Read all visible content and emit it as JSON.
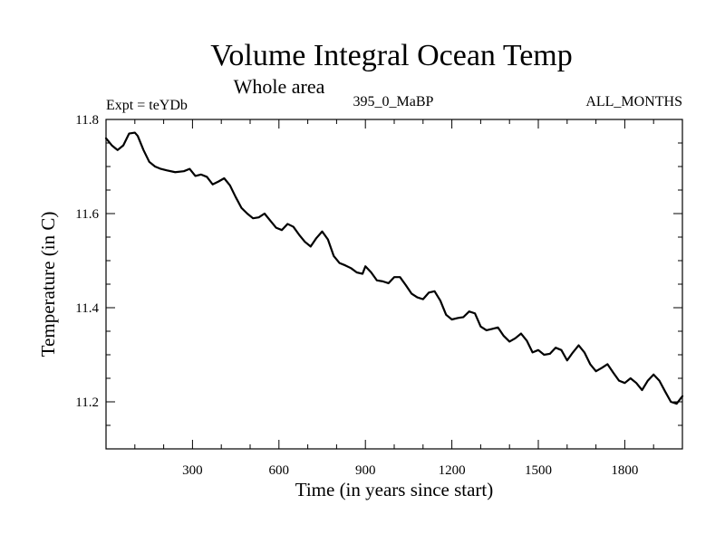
{
  "chart_data": {
    "type": "line",
    "title": "Volume Integral Ocean Temp",
    "subtitle": "Whole area",
    "left_label": "Expt = teYDb",
    "center_label": "395_0_MaBP",
    "right_label": "ALL_MONTHS",
    "xlabel": "Time (in years since start)",
    "ylabel": "Temperature (in C)",
    "xlim": [
      0,
      2000
    ],
    "ylim": [
      11.1,
      11.8
    ],
    "x_ticks": [
      300,
      600,
      900,
      1200,
      1500,
      1800
    ],
    "x_minor_step": 100,
    "y_ticks": [
      11.2,
      11.4,
      11.6,
      11.8
    ],
    "y_tick_labels": [
      "11.2",
      "11.4",
      "11.6",
      "11.8"
    ],
    "y_minor_step": 0.05,
    "line_color": "#000000",
    "series": [
      {
        "name": "Volume Integral Ocean Temp",
        "x": [
          0,
          20,
          40,
          60,
          80,
          100,
          110,
          130,
          150,
          170,
          190,
          210,
          240,
          270,
          290,
          310,
          330,
          350,
          370,
          390,
          410,
          430,
          450,
          470,
          490,
          510,
          530,
          550,
          570,
          590,
          610,
          630,
          650,
          670,
          690,
          710,
          730,
          750,
          770,
          790,
          810,
          830,
          850,
          870,
          890,
          900,
          920,
          940,
          960,
          980,
          1000,
          1020,
          1040,
          1060,
          1080,
          1100,
          1120,
          1140,
          1160,
          1180,
          1200,
          1220,
          1240,
          1260,
          1280,
          1300,
          1320,
          1340,
          1360,
          1380,
          1400,
          1420,
          1440,
          1460,
          1480,
          1500,
          1520,
          1540,
          1560,
          1580,
          1600,
          1620,
          1640,
          1660,
          1680,
          1700,
          1720,
          1740,
          1760,
          1780,
          1800,
          1820,
          1840,
          1860,
          1880,
          1900,
          1920,
          1940,
          1960,
          1980,
          2000
        ],
        "values": [
          11.76,
          11.745,
          11.735,
          11.745,
          11.77,
          11.772,
          11.765,
          11.735,
          11.71,
          11.7,
          11.695,
          11.692,
          11.688,
          11.69,
          11.695,
          11.68,
          11.683,
          11.678,
          11.662,
          11.668,
          11.675,
          11.66,
          11.635,
          11.612,
          11.6,
          11.59,
          11.592,
          11.6,
          11.585,
          11.57,
          11.565,
          11.578,
          11.572,
          11.555,
          11.54,
          11.53,
          11.548,
          11.562,
          11.545,
          11.51,
          11.495,
          11.49,
          11.484,
          11.475,
          11.472,
          11.488,
          11.475,
          11.458,
          11.456,
          11.452,
          11.465,
          11.465,
          11.448,
          11.43,
          11.422,
          11.418,
          11.432,
          11.435,
          11.415,
          11.385,
          11.375,
          11.378,
          11.38,
          11.392,
          11.388,
          11.36,
          11.352,
          11.355,
          11.358,
          11.34,
          11.328,
          11.335,
          11.345,
          11.33,
          11.305,
          11.31,
          11.3,
          11.302,
          11.315,
          11.31,
          11.288,
          11.305,
          11.32,
          11.305,
          11.28,
          11.265,
          11.272,
          11.28,
          11.262,
          11.245,
          11.24,
          11.25,
          11.24,
          11.225,
          11.245,
          11.258,
          11.245,
          11.222,
          11.2,
          11.196,
          11.212
        ]
      }
    ]
  }
}
